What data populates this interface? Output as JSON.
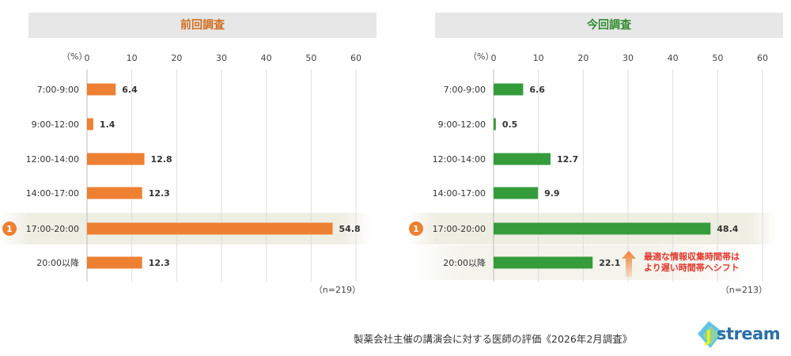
{
  "chart_data": [
    {
      "type": "bar",
      "orientation": "horizontal",
      "title": "前回調査",
      "unit_label": "（%）",
      "xlim": [
        0,
        60
      ],
      "ticks": [
        0,
        10,
        20,
        30,
        40,
        50,
        60
      ],
      "categories": [
        "7:00-9:00",
        "9:00-12:00",
        "12:00-14:00",
        "14:00-17:00",
        "17:00-20:00",
        "20:00以降"
      ],
      "values": [
        6.4,
        1.4,
        12.8,
        12.3,
        54.8,
        12.3
      ],
      "highlight_index": 4,
      "highlight_badge": "1",
      "sample_note": "（n=219）",
      "bar_color": "#ee8033",
      "grid": true
    },
    {
      "type": "bar",
      "orientation": "horizontal",
      "title": "今回調査",
      "unit_label": "（%）",
      "xlim": [
        0,
        60
      ],
      "ticks": [
        0,
        10,
        20,
        30,
        40,
        50,
        60
      ],
      "categories": [
        "7:00-9:00",
        "9:00-12:00",
        "12:00-14:00",
        "14:00-17:00",
        "17:00-20:00",
        "20:00以降"
      ],
      "values": [
        6.6,
        0.5,
        12.7,
        9.9,
        48.4,
        22.1
      ],
      "highlight_index": 4,
      "highlight_badge": "1",
      "sample_note": "（n=213）",
      "bar_color": "#359c3c",
      "grid": true,
      "annotation": {
        "lines": [
          "最適な情報収集時間帯は",
          "より遅い時間帯へシフト"
        ],
        "color": "#e2372b",
        "target_index": 5
      }
    }
  ],
  "footer": {
    "caption": "製薬会社主催の講演会に対する医師の評価《2026年2月調査》"
  },
  "logo": {
    "text": "stream",
    "initial": "J",
    "colors": {
      "initial": "#e6f01e",
      "shape_a": "#5fc3e8",
      "shape_b": "#8ed1a2",
      "text": "#2a6fa8"
    }
  }
}
